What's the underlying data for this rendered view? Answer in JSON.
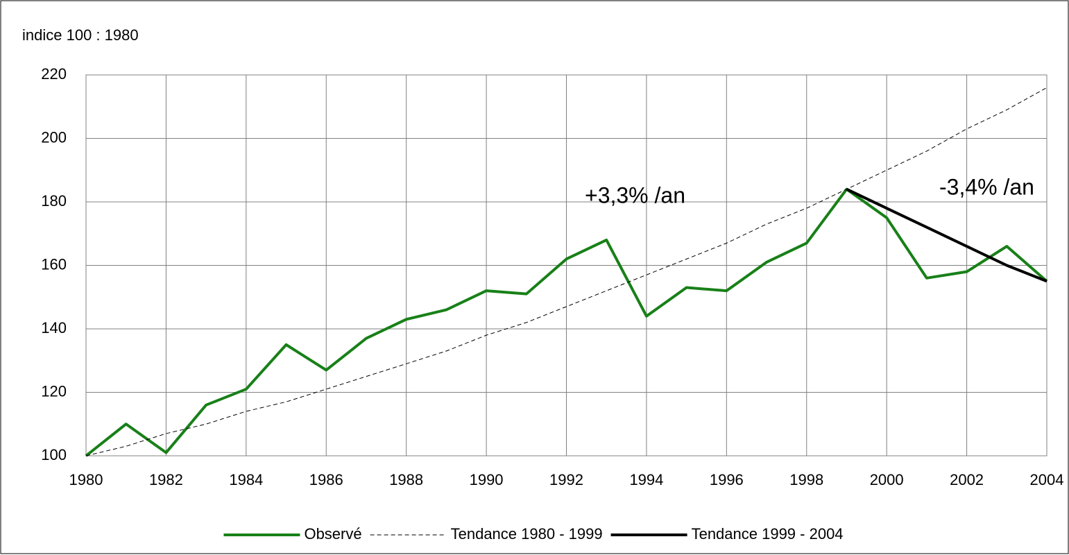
{
  "chart_data": {
    "type": "line",
    "y_label": "indice 100 : 1980",
    "annotations": [
      "+3,3% /an",
      "-3,4% /an"
    ],
    "x": [
      1980,
      1981,
      1982,
      1983,
      1984,
      1985,
      1986,
      1987,
      1988,
      1989,
      1990,
      1991,
      1992,
      1993,
      1994,
      1995,
      1996,
      1997,
      1998,
      1999,
      2000,
      2001,
      2002,
      2003,
      2004
    ],
    "series": [
      {
        "name": "Observé",
        "color": "#188018",
        "line_style": "solid",
        "values": [
          100,
          110,
          101,
          116,
          121,
          135,
          127,
          137,
          143,
          146,
          152,
          151,
          162,
          168,
          144,
          153,
          152,
          161,
          167,
          184,
          175,
          156,
          158,
          166,
          155
        ]
      },
      {
        "name": "Tendance 1980 - 1999",
        "color": "#000000",
        "line_style": "dashed",
        "values": [
          100,
          103,
          107,
          110,
          114,
          117,
          121,
          125,
          129,
          133,
          138,
          142,
          147,
          152,
          157,
          162,
          167,
          173,
          178,
          184,
          190,
          196,
          203,
          209,
          216
        ]
      },
      {
        "name": "Tendance 1999 - 2004",
        "color": "#000000",
        "line_style": "solid",
        "values": [
          null,
          null,
          null,
          null,
          null,
          null,
          null,
          null,
          null,
          null,
          null,
          null,
          null,
          null,
          null,
          null,
          null,
          null,
          null,
          184,
          178,
          172,
          166,
          160,
          155
        ]
      }
    ],
    "xlim": [
      1980,
      2004
    ],
    "xticks": [
      1980,
      1982,
      1984,
      1986,
      1988,
      1990,
      1992,
      1994,
      1996,
      1998,
      2000,
      2002,
      2004
    ],
    "ylim": [
      100,
      220
    ],
    "yticks": [
      100,
      120,
      140,
      160,
      180,
      200,
      220
    ],
    "grid": true,
    "legend": "bottom"
  }
}
